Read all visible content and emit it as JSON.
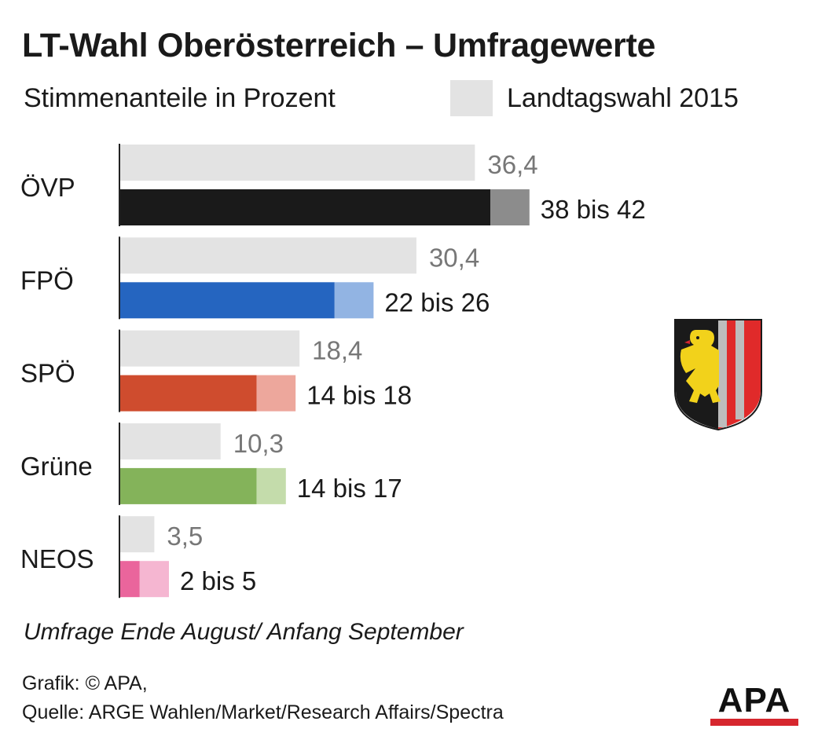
{
  "title": "LT-Wahl Oberösterreich – Umfragewerte",
  "subtitle": "Stimmenanteile in Prozent",
  "legend": {
    "label": "Landtagswahl 2015"
  },
  "footnote": "Umfrage Ende August/ Anfang September",
  "credits": {
    "line1": "Grafik: © APA,",
    "line2": "Quelle: ARGE Wahlen/Market/Research Affairs/Spectra"
  },
  "logo": {
    "text": "APA"
  },
  "colors": {
    "previous": "#e3e3e3",
    "prev_label": "#777777",
    "axis": "#222222",
    "logo_bar": "#d6262e"
  },
  "chart_data": {
    "type": "bar",
    "orientation": "horizontal",
    "categories": [
      "ÖVP",
      "FPÖ",
      "SPÖ",
      "Grüne",
      "NEOS"
    ],
    "series": [
      {
        "name": "Landtagswahl 2015",
        "values": [
          36.4,
          30.4,
          18.4,
          10.3,
          3.5
        ],
        "labels": [
          "36,4",
          "30,4",
          "18,4",
          "10,3",
          "3,5"
        ]
      },
      {
        "range_low": [
          38,
          22,
          14,
          14,
          2
        ],
        "range_high": [
          42,
          26,
          18,
          17,
          5
        ],
        "labels": [
          "38 bis 42",
          "22 bis 26",
          "14 bis 18",
          "14 bis 17",
          "2 bis 5"
        ],
        "colors": [
          "#1a1a1a",
          "#2565c0",
          "#cf4c2e",
          "#84b35a",
          "#ea659c"
        ],
        "range_colors": [
          "#8c8c8c",
          "#92b4e3",
          "#eda79c",
          "#c4dcab",
          "#f5b6d1"
        ]
      }
    ],
    "xlim": [
      0,
      42
    ],
    "grid": false
  }
}
